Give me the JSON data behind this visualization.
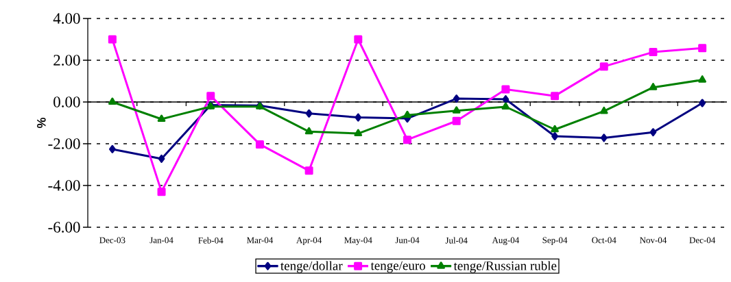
{
  "chart_data": {
    "type": "line",
    "ylabel": "%",
    "categories": [
      "Dec-03",
      "Jan-04",
      "Feb-04",
      "Mar-04",
      "Apr-04",
      "May-04",
      "Jun-04",
      "Jul-04",
      "Aug-04",
      "Sep-04",
      "Oct-04",
      "Nov-04",
      "Dec-04"
    ],
    "series": [
      {
        "name": "tenge/dollar",
        "color": "#000080",
        "marker": "diamond",
        "values": [
          -2.26,
          -2.72,
          -0.15,
          -0.17,
          -0.55,
          -0.74,
          -0.79,
          0.16,
          0.13,
          -1.64,
          -1.72,
          -1.45,
          -0.05
        ]
      },
      {
        "name": "tenge/euro",
        "color": "#ff00ff",
        "marker": "square",
        "values": [
          3.0,
          -4.3,
          0.29,
          -2.03,
          -3.29,
          3.0,
          -1.81,
          -0.91,
          0.61,
          0.29,
          1.7,
          2.39,
          2.58
        ]
      },
      {
        "name": "tenge/Russian ruble",
        "color": "#008000",
        "marker": "triangle",
        "values": [
          0.0,
          -0.82,
          -0.22,
          -0.22,
          -1.42,
          -1.51,
          -0.63,
          -0.42,
          -0.23,
          -1.32,
          -0.44,
          0.7,
          1.06
        ]
      }
    ],
    "ylim": [
      -6,
      4
    ],
    "yticks": [
      {
        "value": -6,
        "label": "-6.00"
      },
      {
        "value": -4,
        "label": "-4.00"
      },
      {
        "value": -2,
        "label": "-2.00"
      },
      {
        "value": 0,
        "label": "0.00"
      },
      {
        "value": 2,
        "label": "2.00"
      },
      {
        "value": 4,
        "label": "4.00"
      }
    ],
    "grid": "y",
    "legend": "bottom"
  }
}
